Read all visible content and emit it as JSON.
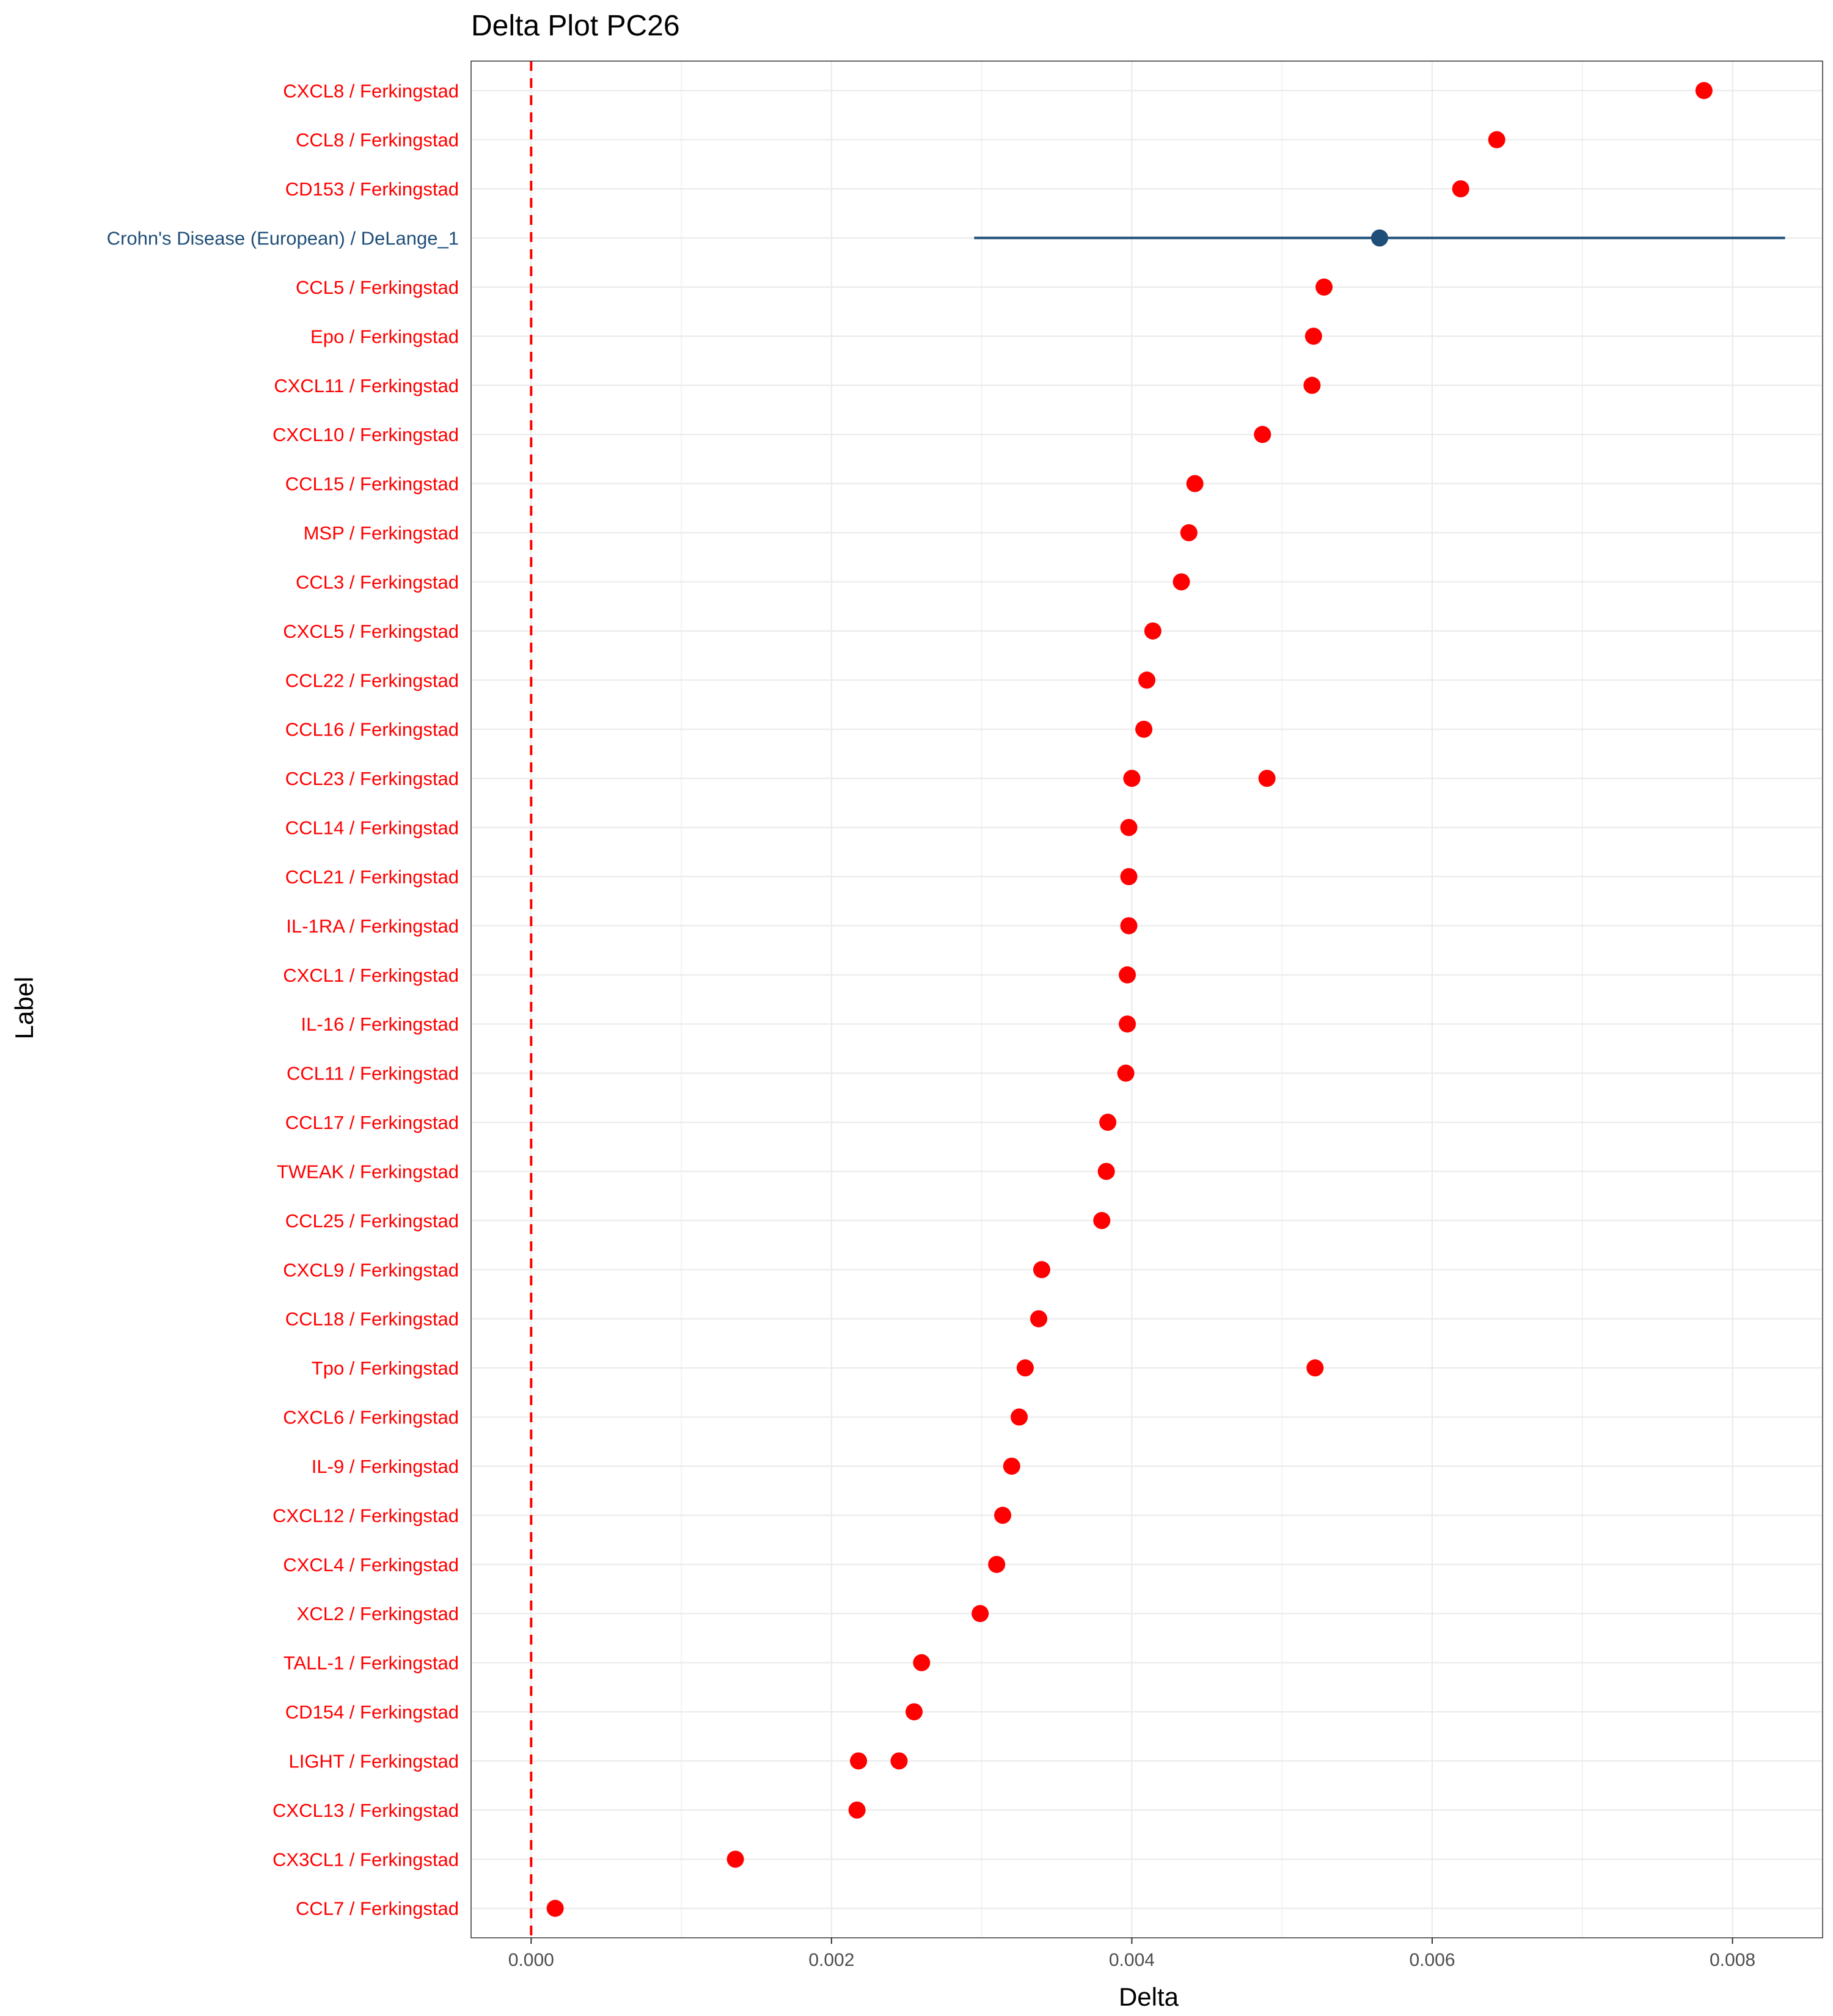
{
  "chart_data": {
    "type": "scatter",
    "title": "Delta Plot PC26",
    "xlabel": "Delta",
    "ylabel": "Label",
    "xlim": [
      -0.0004,
      0.0086
    ],
    "x_ticks": [
      "0.000",
      "0.002",
      "0.004",
      "0.006",
      "0.008"
    ],
    "x_tick_values": [
      0.0,
      0.002,
      0.004,
      0.006,
      0.008
    ],
    "grid": true,
    "reference_line": {
      "x": 0.0,
      "style": "dashed",
      "color": "#ff0000"
    },
    "colors": {
      "protein": "#ff0000",
      "disease": "#1f4e79",
      "grid": "#ebebeb",
      "panel_border": "#333333"
    },
    "categories": [
      "CXCL8 / Ferkingstad",
      "CCL8 / Ferkingstad",
      "CD153 / Ferkingstad",
      "Crohn's Disease (European) / DeLange_1",
      "CCL5 / Ferkingstad",
      "Epo / Ferkingstad",
      "CXCL11 / Ferkingstad",
      "CXCL10 / Ferkingstad",
      "CCL15 / Ferkingstad",
      "MSP / Ferkingstad",
      "CCL3 / Ferkingstad",
      "CXCL5 / Ferkingstad",
      "CCL22 / Ferkingstad",
      "CCL16 / Ferkingstad",
      "CCL23 / Ferkingstad",
      "CCL14 / Ferkingstad",
      "CCL21 / Ferkingstad",
      "IL-1RA / Ferkingstad",
      "CXCL1 / Ferkingstad",
      "IL-16 / Ferkingstad",
      "CCL11 / Ferkingstad",
      "CCL17 / Ferkingstad",
      "TWEAK / Ferkingstad",
      "CCL25 / Ferkingstad",
      "CXCL9 / Ferkingstad",
      "CCL18 / Ferkingstad",
      "Tpo / Ferkingstad",
      "CXCL6 / Ferkingstad",
      "IL-9 / Ferkingstad",
      "CXCL12 / Ferkingstad",
      "CXCL4 / Ferkingstad",
      "XCL2 / Ferkingstad",
      "TALL-1 / Ferkingstad",
      "CD154 / Ferkingstad",
      "LIGHT / Ferkingstad",
      "CXCL13 / Ferkingstad",
      "CX3CL1 / Ferkingstad",
      "CCL7 / Ferkingstad"
    ],
    "label_groups": [
      "protein",
      "protein",
      "protein",
      "disease",
      "protein",
      "protein",
      "protein",
      "protein",
      "protein",
      "protein",
      "protein",
      "protein",
      "protein",
      "protein",
      "protein",
      "protein",
      "protein",
      "protein",
      "protein",
      "protein",
      "protein",
      "protein",
      "protein",
      "protein",
      "protein",
      "protein",
      "protein",
      "protein",
      "protein",
      "protein",
      "protein",
      "protein",
      "protein",
      "protein",
      "protein",
      "protein",
      "protein",
      "protein"
    ],
    "points": [
      {
        "label": "CXCL8 / Ferkingstad",
        "x": 0.00781,
        "group": "protein"
      },
      {
        "label": "CCL8 / Ferkingstad",
        "x": 0.00643,
        "group": "protein"
      },
      {
        "label": "CD153 / Ferkingstad",
        "x": 0.00619,
        "group": "protein"
      },
      {
        "label": "Crohn's Disease (European) / DeLange_1",
        "x": 0.00565,
        "xmin": 0.00295,
        "xmax": 0.00835,
        "group": "disease"
      },
      {
        "label": "CCL5 / Ferkingstad",
        "x": 0.00528,
        "group": "protein"
      },
      {
        "label": "Epo / Ferkingstad",
        "x": 0.00521,
        "group": "protein"
      },
      {
        "label": "CXCL11 / Ferkingstad",
        "x": 0.0052,
        "group": "protein"
      },
      {
        "label": "CXCL10 / Ferkingstad",
        "x": 0.00487,
        "group": "protein"
      },
      {
        "label": "CCL15 / Ferkingstad",
        "x": 0.00442,
        "group": "protein"
      },
      {
        "label": "MSP / Ferkingstad",
        "x": 0.00438,
        "group": "protein"
      },
      {
        "label": "CCL3 / Ferkingstad",
        "x": 0.00433,
        "group": "protein"
      },
      {
        "label": "CXCL5 / Ferkingstad",
        "x": 0.00414,
        "group": "protein"
      },
      {
        "label": "CCL22 / Ferkingstad",
        "x": 0.0041,
        "group": "protein"
      },
      {
        "label": "CCL16 / Ferkingstad",
        "x": 0.00408,
        "group": "protein"
      },
      {
        "label": "CCL23 / Ferkingstad",
        "x": 0.004,
        "group": "protein"
      },
      {
        "label": "CCL23 / Ferkingstad",
        "x": 0.0049,
        "group": "protein"
      },
      {
        "label": "CCL14 / Ferkingstad",
        "x": 0.00398,
        "group": "protein"
      },
      {
        "label": "CCL21 / Ferkingstad",
        "x": 0.00398,
        "group": "protein"
      },
      {
        "label": "IL-1RA / Ferkingstad",
        "x": 0.00398,
        "group": "protein"
      },
      {
        "label": "CXCL1 / Ferkingstad",
        "x": 0.00397,
        "group": "protein"
      },
      {
        "label": "IL-16 / Ferkingstad",
        "x": 0.00397,
        "group": "protein"
      },
      {
        "label": "CCL11 / Ferkingstad",
        "x": 0.00396,
        "group": "protein"
      },
      {
        "label": "CCL17 / Ferkingstad",
        "x": 0.00384,
        "group": "protein"
      },
      {
        "label": "TWEAK / Ferkingstad",
        "x": 0.00383,
        "group": "protein"
      },
      {
        "label": "CCL25 / Ferkingstad",
        "x": 0.0038,
        "group": "protein"
      },
      {
        "label": "CXCL9 / Ferkingstad",
        "x": 0.0034,
        "group": "protein"
      },
      {
        "label": "CCL18 / Ferkingstad",
        "x": 0.00338,
        "group": "protein"
      },
      {
        "label": "Tpo / Ferkingstad",
        "x": 0.00329,
        "group": "protein"
      },
      {
        "label": "Tpo / Ferkingstad",
        "x": 0.00522,
        "group": "protein"
      },
      {
        "label": "CXCL6 / Ferkingstad",
        "x": 0.00325,
        "group": "protein"
      },
      {
        "label": "IL-9 / Ferkingstad",
        "x": 0.0032,
        "group": "protein"
      },
      {
        "label": "CXCL12 / Ferkingstad",
        "x": 0.00314,
        "group": "protein"
      },
      {
        "label": "CXCL4 / Ferkingstad",
        "x": 0.0031,
        "group": "protein"
      },
      {
        "label": "XCL2 / Ferkingstad",
        "x": 0.00299,
        "group": "protein"
      },
      {
        "label": "TALL-1 / Ferkingstad",
        "x": 0.0026,
        "group": "protein"
      },
      {
        "label": "CD154 / Ferkingstad",
        "x": 0.00255,
        "group": "protein"
      },
      {
        "label": "LIGHT / Ferkingstad",
        "x": 0.00218,
        "group": "protein"
      },
      {
        "label": "LIGHT / Ferkingstad",
        "x": 0.00245,
        "group": "protein"
      },
      {
        "label": "CXCL13 / Ferkingstad",
        "x": 0.00217,
        "group": "protein"
      },
      {
        "label": "CX3CL1 / Ferkingstad",
        "x": 0.00136,
        "group": "protein"
      },
      {
        "label": "CCL7 / Ferkingstad",
        "x": 0.00016,
        "group": "protein"
      }
    ]
  }
}
